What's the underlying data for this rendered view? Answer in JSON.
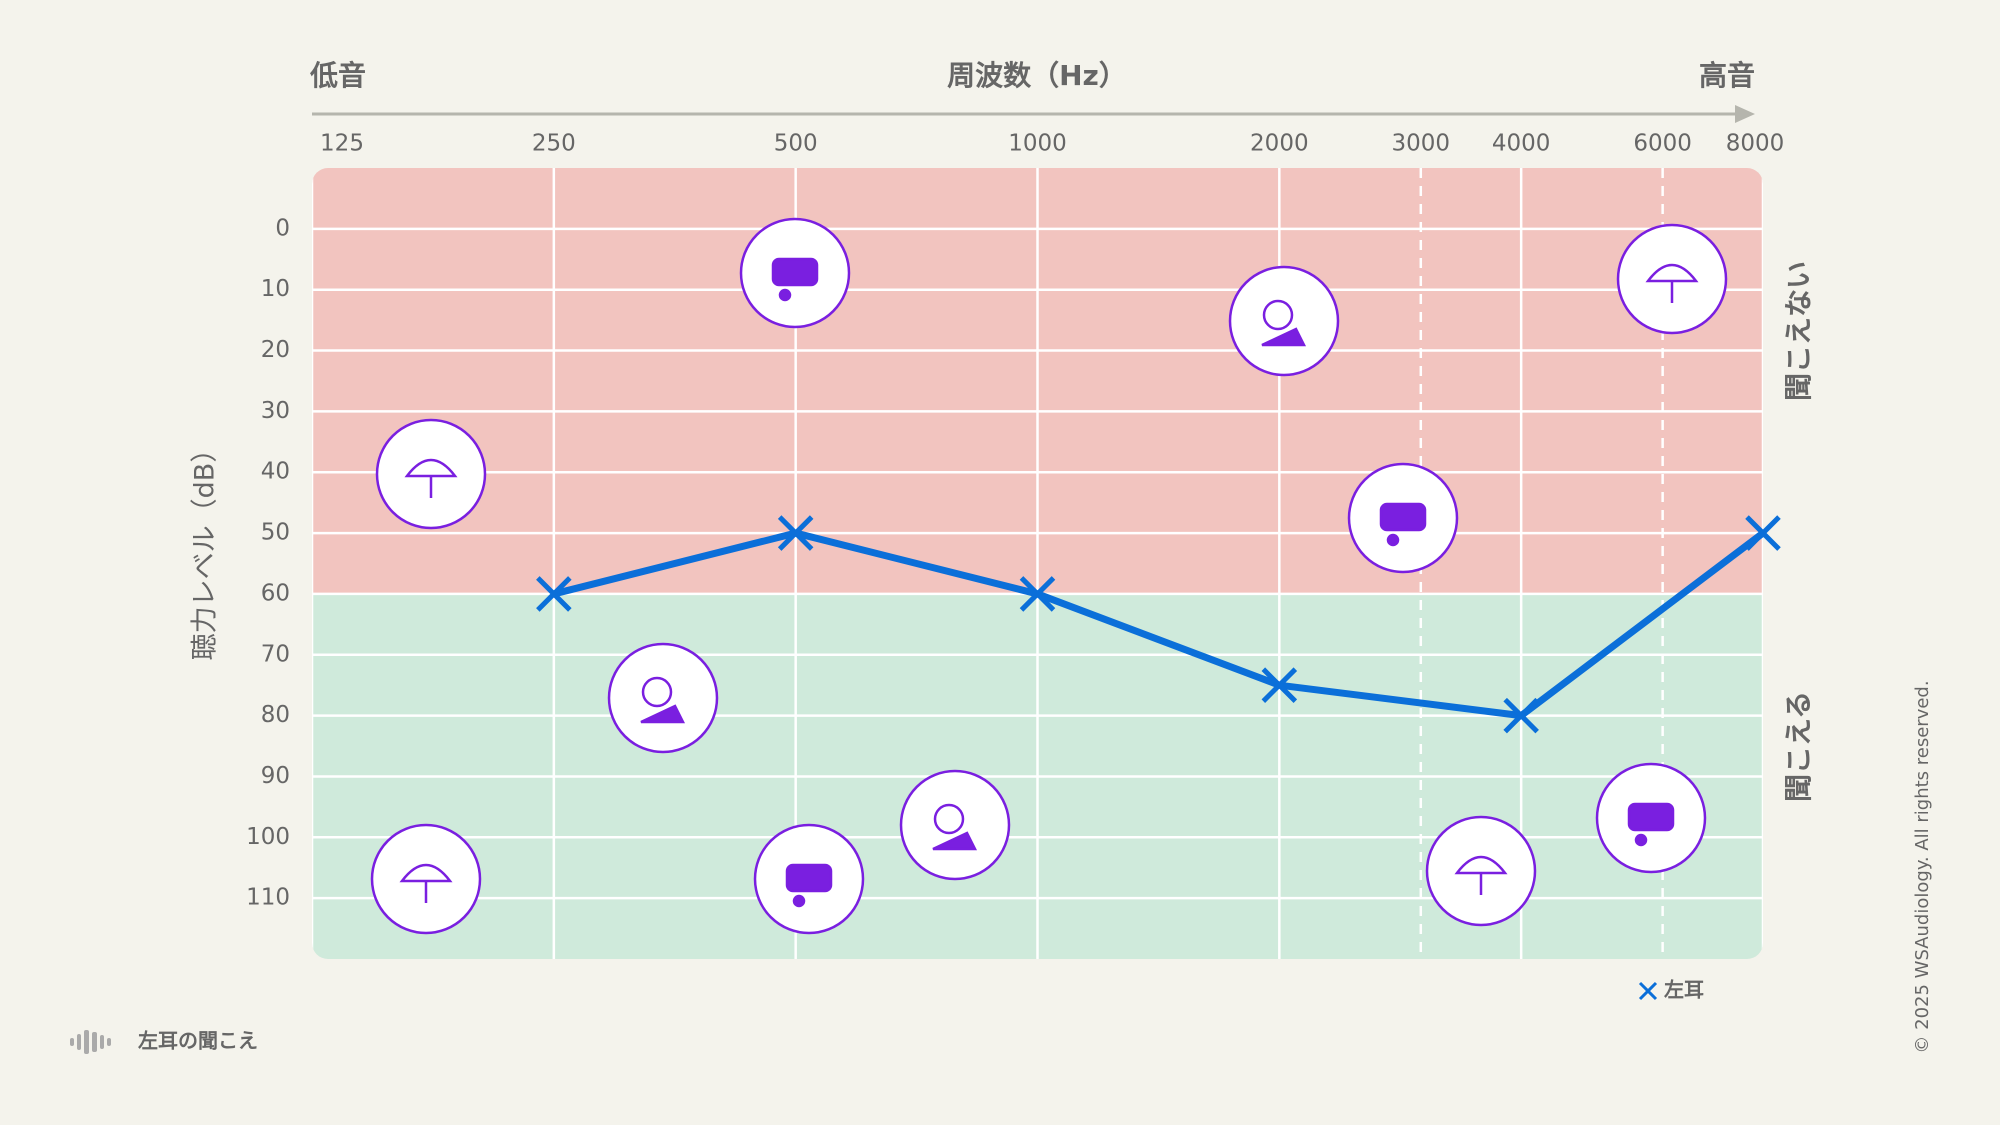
{
  "chart_data": {
    "type": "line",
    "x_label": "周波数（Hz）",
    "x_low_label": "低音",
    "x_high_label": "高音",
    "y_label": "聴力レベル（dB）",
    "x_scale": "log",
    "xlim": [
      125,
      8000
    ],
    "xticks": [
      125,
      250,
      500,
      1000,
      2000,
      4000,
      8000
    ],
    "minor_xticks": [
      3000,
      6000
    ],
    "ylim": [
      -10,
      120
    ],
    "y_inverted": true,
    "yticks": [
      0,
      10,
      20,
      30,
      40,
      50,
      60,
      70,
      80,
      90,
      100,
      110
    ],
    "grid": true,
    "legend": "bottom-right",
    "zones": [
      {
        "label": "聞こえない",
        "from": -10,
        "to": 60,
        "color": "#f2c4bf",
        "text_color": "#a3243b"
      },
      {
        "label": "聞こえる",
        "from": 60,
        "to": 120,
        "color": "#cfeadb",
        "text_color": "#1f7a5c"
      }
    ],
    "x": [
      250,
      500,
      1000,
      2000,
      4000,
      8000
    ],
    "series": [
      {
        "name": "左耳",
        "color": "#0b6fd9",
        "values": [
          60,
          50,
          60,
          75,
          80,
          50
        ]
      }
    ]
  },
  "footer": "左耳の聞こえ",
  "copyright": "© 2025 WSAudiology. All rights reserved."
}
